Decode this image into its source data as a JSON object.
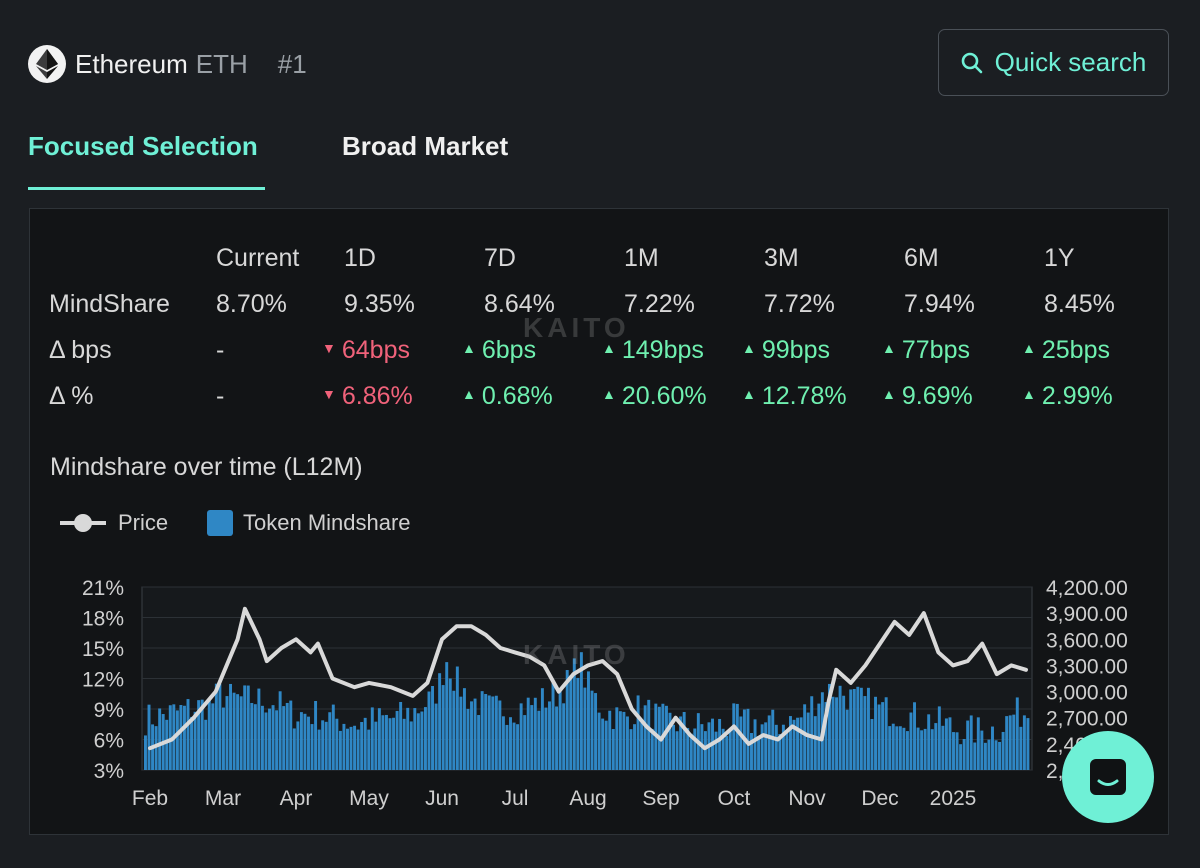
{
  "header": {
    "asset_name": "Ethereum",
    "asset_ticker": "ETH",
    "rank": "#1",
    "search_label": "Quick search",
    "logo_icon": "ethereum-logo-icon"
  },
  "tabs": [
    {
      "label": "Focused Selection",
      "active": true
    },
    {
      "label": "Broad Market",
      "active": false
    }
  ],
  "stats": {
    "columns": [
      "Current",
      "1D",
      "7D",
      "1M",
      "3M",
      "6M",
      "1Y"
    ],
    "rows": [
      {
        "label": "MindShare",
        "values": [
          "8.70%",
          "9.35%",
          "8.64%",
          "7.22%",
          "7.72%",
          "7.94%",
          "8.45%"
        ],
        "directions": [
          "none",
          "none",
          "none",
          "none",
          "none",
          "none",
          "none"
        ]
      },
      {
        "label": "Δ bps",
        "values": [
          "-",
          "64bps",
          "6bps",
          "149bps",
          "99bps",
          "77bps",
          "25bps"
        ],
        "directions": [
          "none",
          "down",
          "up",
          "up",
          "up",
          "up",
          "up"
        ]
      },
      {
        "label": "Δ %",
        "values": [
          "-",
          "6.86%",
          "0.68%",
          "20.60%",
          "12.78%",
          "9.69%",
          "2.99%"
        ],
        "directions": [
          "none",
          "down",
          "up",
          "up",
          "up",
          "up",
          "up"
        ]
      }
    ]
  },
  "watermark": "KAITO",
  "colors": {
    "accent": "#6ff0d6",
    "up": "#6ff0b0",
    "down": "#f0627a",
    "bar": "#2f87c5",
    "price_line": "#d9d9d9"
  },
  "chart_title": "Mindshare over time (L12M)",
  "chart_data": {
    "type": "bar",
    "title": "Mindshare over time (L12M)",
    "legend": [
      "Price",
      "Token Mindshare"
    ],
    "x_tick_labels": [
      "Feb",
      "Mar",
      "Apr",
      "May",
      "Jun",
      "Jul",
      "Aug",
      "Sep",
      "Oct",
      "Nov",
      "Dec",
      "2025"
    ],
    "left_axis": {
      "label": "",
      "ticks": [
        "21%",
        "18%",
        "15%",
        "12%",
        "9%",
        "6%",
        "3%"
      ],
      "ylim": [
        3,
        21
      ]
    },
    "right_axis": {
      "label": "",
      "ticks": [
        "4,200.00",
        "3,900.00",
        "3,600.00",
        "3,300.00",
        "3,000.00",
        "2,700.00",
        "2,400.00",
        "2,100.00"
      ],
      "ylim": [
        2100,
        4200
      ]
    },
    "x_range_months": [
      0,
      12
    ],
    "series": [
      {
        "name": "Token Mindshare",
        "type": "bar",
        "axis": "left",
        "unit": "%",
        "points": [
          [
            0.0,
            8.0
          ],
          [
            0.3,
            8.5
          ],
          [
            0.6,
            9.0
          ],
          [
            0.9,
            9.5
          ],
          [
            1.0,
            10.5
          ],
          [
            1.2,
            10.0
          ],
          [
            1.5,
            10.0
          ],
          [
            1.8,
            9.5
          ],
          [
            2.0,
            8.5
          ],
          [
            2.3,
            8.5
          ],
          [
            2.6,
            8.0
          ],
          [
            2.9,
            7.5
          ],
          [
            3.0,
            7.8
          ],
          [
            3.3,
            8.0
          ],
          [
            3.6,
            8.5
          ],
          [
            3.9,
            10.0
          ],
          [
            4.0,
            11.5
          ],
          [
            4.1,
            14.0
          ],
          [
            4.2,
            12.0
          ],
          [
            4.4,
            10.0
          ],
          [
            4.7,
            9.0
          ],
          [
            5.0,
            9.0
          ],
          [
            5.3,
            9.5
          ],
          [
            5.6,
            10.5
          ],
          [
            5.8,
            12.0
          ],
          [
            5.9,
            14.0
          ],
          [
            6.0,
            11.5
          ],
          [
            6.2,
            9.0
          ],
          [
            6.5,
            8.0
          ],
          [
            6.7,
            9.0
          ],
          [
            6.9,
            8.5
          ],
          [
            7.0,
            8.0
          ],
          [
            7.3,
            7.5
          ],
          [
            7.6,
            7.3
          ],
          [
            7.9,
            7.3
          ],
          [
            8.0,
            8.0
          ],
          [
            8.3,
            7.5
          ],
          [
            8.6,
            7.5
          ],
          [
            8.9,
            8.0
          ],
          [
            9.0,
            9.0
          ],
          [
            9.2,
            10.5
          ],
          [
            9.4,
            11.0
          ],
          [
            9.6,
            10.0
          ],
          [
            9.9,
            9.5
          ],
          [
            10.0,
            9.0
          ],
          [
            10.3,
            8.5
          ],
          [
            10.6,
            8.0
          ],
          [
            10.9,
            7.5
          ],
          [
            11.0,
            7.0
          ],
          [
            11.3,
            6.8
          ],
          [
            11.6,
            7.0
          ],
          [
            11.8,
            8.5
          ],
          [
            12.0,
            8.7
          ]
        ]
      },
      {
        "name": "Price",
        "type": "line",
        "axis": "right",
        "unit": "USD",
        "points": [
          [
            0.0,
            2350
          ],
          [
            0.3,
            2450
          ],
          [
            0.6,
            2700
          ],
          [
            0.9,
            3000
          ],
          [
            1.0,
            3200
          ],
          [
            1.2,
            3600
          ],
          [
            1.3,
            3950
          ],
          [
            1.5,
            3600
          ],
          [
            1.6,
            3350
          ],
          [
            1.8,
            3500
          ],
          [
            2.0,
            3600
          ],
          [
            2.2,
            3450
          ],
          [
            2.3,
            3550
          ],
          [
            2.5,
            3150
          ],
          [
            2.8,
            3050
          ],
          [
            3.0,
            3100
          ],
          [
            3.3,
            3050
          ],
          [
            3.6,
            2950
          ],
          [
            3.8,
            3100
          ],
          [
            4.0,
            3600
          ],
          [
            4.2,
            3750
          ],
          [
            4.4,
            3750
          ],
          [
            4.6,
            3650
          ],
          [
            4.8,
            3500
          ],
          [
            5.0,
            3450
          ],
          [
            5.2,
            3400
          ],
          [
            5.4,
            3300
          ],
          [
            5.6,
            3000
          ],
          [
            5.8,
            3200
          ],
          [
            6.0,
            3300
          ],
          [
            6.2,
            3350
          ],
          [
            6.4,
            3200
          ],
          [
            6.6,
            2800
          ],
          [
            6.8,
            2600
          ],
          [
            7.0,
            2450
          ],
          [
            7.2,
            2700
          ],
          [
            7.4,
            2500
          ],
          [
            7.6,
            2350
          ],
          [
            7.8,
            2450
          ],
          [
            8.0,
            2600
          ],
          [
            8.2,
            2400
          ],
          [
            8.4,
            2500
          ],
          [
            8.6,
            2450
          ],
          [
            8.8,
            2600
          ],
          [
            9.0,
            2500
          ],
          [
            9.2,
            2450
          ],
          [
            9.3,
            2900
          ],
          [
            9.4,
            3250
          ],
          [
            9.6,
            3100
          ],
          [
            9.8,
            3300
          ],
          [
            10.0,
            3550
          ],
          [
            10.2,
            3800
          ],
          [
            10.4,
            3650
          ],
          [
            10.6,
            3900
          ],
          [
            10.8,
            3450
          ],
          [
            11.0,
            3300
          ],
          [
            11.2,
            3350
          ],
          [
            11.4,
            3550
          ],
          [
            11.6,
            3200
          ],
          [
            11.8,
            3300
          ],
          [
            12.0,
            3250
          ]
        ]
      }
    ]
  }
}
